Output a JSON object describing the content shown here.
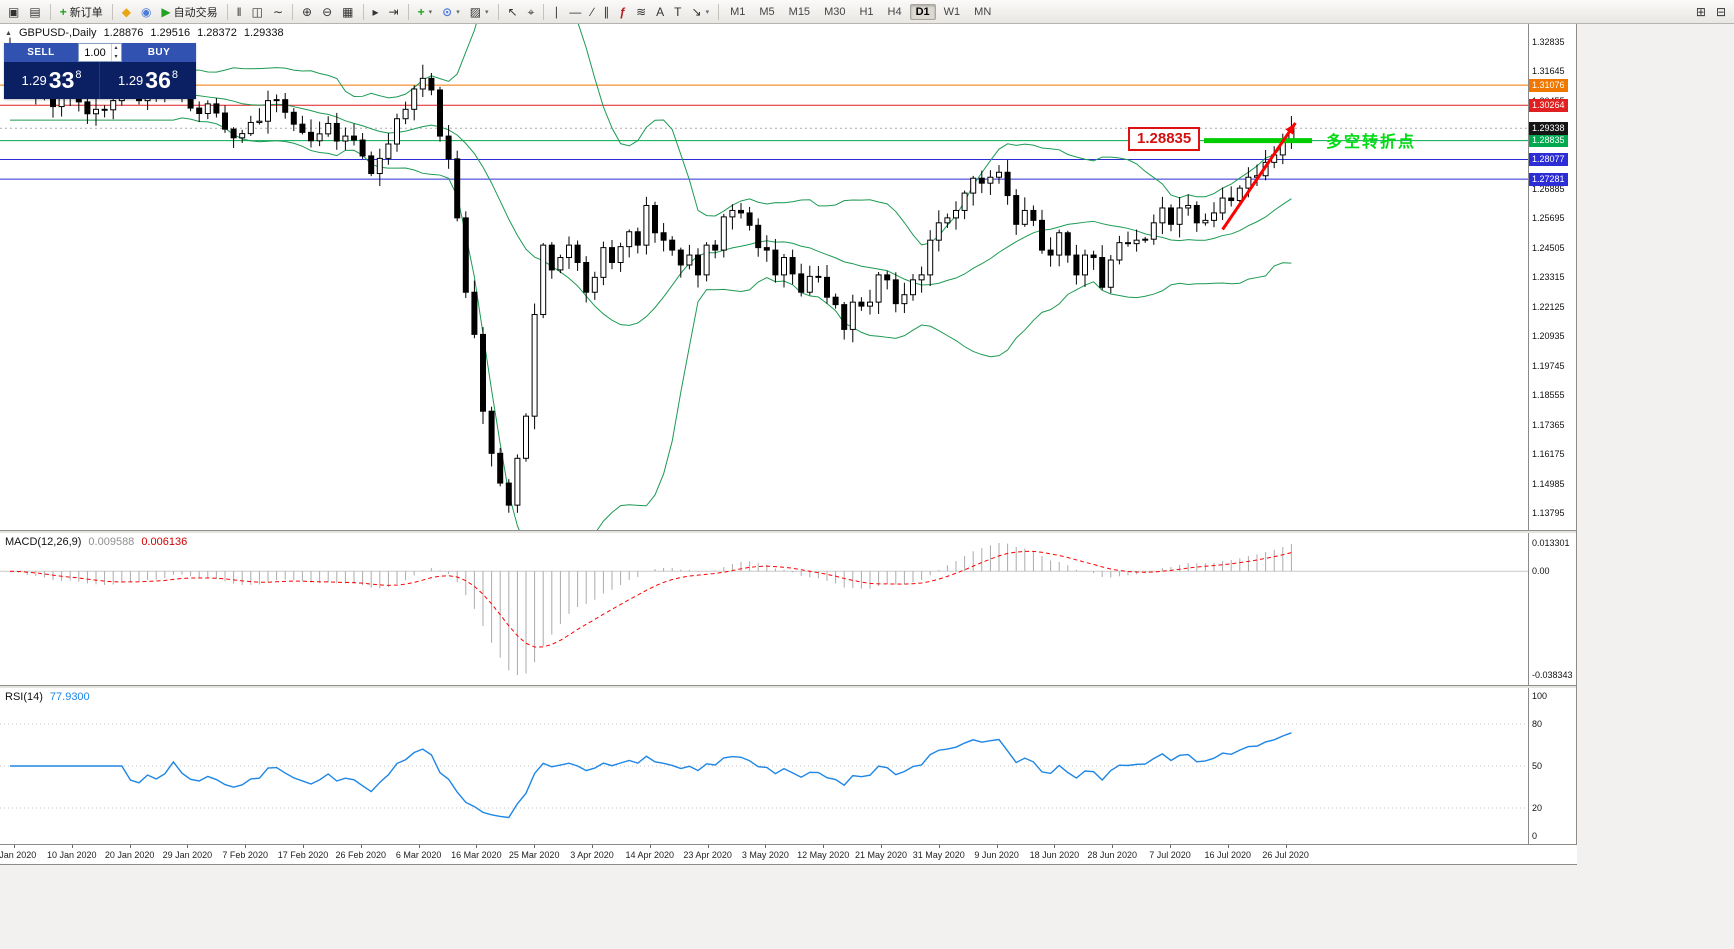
{
  "ui_icons": {
    "collapse": "▲",
    "caret": "▾",
    "spin_up": "▴",
    "spin_dn": "▾"
  },
  "toolbar": {
    "items": [
      {
        "name": "new-window-icon",
        "glyph": "▣"
      },
      {
        "name": "profiles-icon",
        "glyph": "▤"
      },
      {
        "type": "sep"
      },
      {
        "name": "new-order-button",
        "glyph": "+",
        "glyph_color": "#1FA51F",
        "label": "新订单"
      },
      {
        "type": "sep"
      },
      {
        "name": "mql5-community-icon",
        "glyph": "◆",
        "glyph_color": "#E8A617"
      },
      {
        "name": "market-news-icon",
        "glyph": "◉",
        "glyph_color": "#4F7BD9"
      },
      {
        "name": "autotrading-button",
        "glyph": "▶",
        "glyph_color": "#21A321",
        "label": "自动交易"
      },
      {
        "type": "sep"
      },
      {
        "name": "bar-chart-icon",
        "glyph": "‖"
      },
      {
        "name": "candlestick-chart-icon",
        "glyph": "◫"
      },
      {
        "name": "line-chart-icon",
        "glyph": "∼"
      },
      {
        "type": "sep"
      },
      {
        "name": "zoom-in-icon",
        "glyph": "⊕"
      },
      {
        "name": "zoom-out-icon",
        "glyph": "⊖"
      },
      {
        "name": "tile-windows-icon",
        "glyph": "▦"
      },
      {
        "type": "sep"
      },
      {
        "name": "auto-scroll-icon",
        "glyph": "▸"
      },
      {
        "name": "chart-shift-icon",
        "glyph": "⇥"
      },
      {
        "type": "sep"
      },
      {
        "name": "indicators-icon",
        "glyph": "+",
        "glyph_color": "#1FA51F",
        "caret": true
      },
      {
        "name": "periods-icon",
        "glyph": "⊙",
        "glyph_color": "#4F7BD9",
        "caret": true
      },
      {
        "name": "templates-icon",
        "glyph": "▨",
        "caret": true
      },
      {
        "type": "sep"
      },
      {
        "name": "cursor-icon",
        "glyph": "↖"
      },
      {
        "name": "crosshair-icon",
        "glyph": "⌖"
      },
      {
        "type": "sep"
      },
      {
        "name": "vertical-line-icon",
        "glyph": "∣"
      },
      {
        "name": "horizontal-line-icon",
        "glyph": "―"
      },
      {
        "name": "trendline-icon",
        "glyph": "∕"
      },
      {
        "name": "equidistant-channel-icon",
        "glyph": "∥"
      },
      {
        "name": "fibonacci-icon",
        "glyph": "ƒ",
        "glyph_color": "#B22222"
      },
      {
        "name": "shapes-icon",
        "glyph": "≋"
      },
      {
        "name": "text-icon",
        "glyph": "A"
      },
      {
        "name": "text-label-icon",
        "glyph": "T"
      },
      {
        "name": "arrows-icon",
        "glyph": "↘",
        "caret": true
      },
      {
        "type": "sep"
      },
      {
        "type": "timeframes"
      },
      {
        "type": "spacer"
      },
      {
        "name": "print-icon",
        "glyph": "⊞"
      },
      {
        "name": "window-arrange-icon",
        "glyph": "⊟"
      }
    ],
    "timeframes": {
      "options": [
        "M1",
        "M5",
        "M15",
        "M30",
        "H1",
        "H4",
        "D1",
        "W1",
        "MN"
      ],
      "active": "D1"
    }
  },
  "chart": {
    "title": "GBPUSD-,Daily",
    "ohlc": {
      "open": "1.28876",
      "high": "1.29516",
      "low": "1.28372",
      "close": "1.29338"
    },
    "one_click": {
      "sell_label": "SELL",
      "buy_label": "BUY",
      "volume": "1.00",
      "sell_price": {
        "head": "1.29",
        "big": "33",
        "sup": "8"
      },
      "buy_price": {
        "head": "1.29",
        "big": "36",
        "sup": "8"
      }
    },
    "annotations": {
      "price_label": "1.28835",
      "note": "多空转折点"
    },
    "levels": [
      {
        "price": 1.31076,
        "label": "1.31076",
        "color": "#F07800"
      },
      {
        "price": 1.30264,
        "label": "1.30264",
        "color": "#E02020"
      },
      {
        "price": 1.28835,
        "label": "1.28835",
        "color": "#00A94F"
      },
      {
        "price": 1.28077,
        "label": "1.28077",
        "color": "#2D2DD6"
      },
      {
        "price": 1.27281,
        "label": "1.27281",
        "color": "#2D2DD6"
      }
    ],
    "bid": {
      "price": 1.29338,
      "label": "1.29338",
      "badge": "#151515"
    },
    "y_axis": {
      "max": 1.333,
      "min": 1.1345,
      "ticks": [
        "1.32835",
        "1.31645",
        "1.30455",
        "1.29265",
        "1.28075",
        "1.26885",
        "1.25695",
        "1.24505",
        "1.23315",
        "1.22125",
        "1.20935",
        "1.19745",
        "1.18555",
        "1.17365",
        "1.16175",
        "1.14985",
        "1.13795"
      ]
    }
  },
  "macd": {
    "name": "MACD(12,26,9)",
    "main_value": "0.009588",
    "signal_value": "0.006136",
    "axis": {
      "max": "0.013301",
      "zero": "0.00",
      "min": "-0.038343"
    }
  },
  "rsi": {
    "name": "RSI(14)",
    "value": "77.9300",
    "axis": [
      "100",
      "80",
      "50",
      "20",
      "0"
    ],
    "levels": [
      80,
      50,
      20
    ]
  },
  "time_axis": {
    "labels": [
      "1 Jan 2020",
      "10 Jan 2020",
      "20 Jan 2020",
      "29 Jan 2020",
      "7 Feb 2020",
      "17 Feb 2020",
      "26 Feb 2020",
      "6 Mar 2020",
      "16 Mar 2020",
      "25 Mar 2020",
      "3 Apr 2020",
      "14 Apr 2020",
      "23 Apr 2020",
      "3 May 2020",
      "12 May 2020",
      "21 May 2020",
      "31 May 2020",
      "9 Jun 2020",
      "18 Jun 2020",
      "28 Jun 2020",
      "7 Jul 2020",
      "16 Jul 2020",
      "26 Jul 2020"
    ]
  },
  "chart_data": {
    "type": "candlestick",
    "symbol": "GBPUSD",
    "timeframe": "Daily",
    "title": "GBPUSD-,Daily",
    "x_labels": [
      "1 Jan 2020",
      "10 Jan 2020",
      "20 Jan 2020",
      "29 Jan 2020",
      "7 Feb 2020",
      "17 Feb 2020",
      "26 Feb 2020",
      "6 Mar 2020",
      "16 Mar 2020",
      "25 Mar 2020",
      "3 Apr 2020",
      "14 Apr 2020",
      "23 Apr 2020",
      "3 May 2020",
      "12 May 2020",
      "21 May 2020",
      "31 May 2020",
      "9 Jun 2020",
      "18 Jun 2020",
      "28 Jun 2020",
      "7 Jul 2020",
      "16 Jul 2020",
      "26 Jul 2020"
    ],
    "ylim": [
      1.1345,
      1.333
    ],
    "closes": [
      1.3204,
      1.314,
      1.308,
      1.3126,
      1.3078,
      1.3021,
      1.3065,
      1.3118,
      1.304,
      1.2992,
      1.301,
      1.3008,
      1.3045,
      1.3103,
      1.3076,
      1.3045,
      1.3102,
      1.3061,
      1.31,
      1.3205,
      1.309,
      1.3015,
      1.2993,
      1.3032,
      1.2995,
      1.293,
      1.2895,
      1.2912,
      1.2957,
      1.2962,
      1.3045,
      1.3049,
      1.2998,
      1.295,
      1.2917,
      1.2883,
      1.2911,
      1.2953,
      1.2882,
      1.2902,
      1.2886,
      1.2822,
      1.2751,
      1.2812,
      1.287,
      1.2972,
      1.301,
      1.3092,
      1.3135,
      1.3088,
      1.2902,
      1.281,
      1.2572,
      1.2272,
      1.2102,
      1.1792,
      1.1622,
      1.1502,
      1.1413,
      1.1602,
      1.1772,
      1.2182,
      1.2462,
      1.2362,
      1.2412,
      1.2462,
      1.2392,
      1.2272,
      1.2332,
      1.2452,
      1.2392,
      1.2456,
      1.2516,
      1.2462,
      1.2622,
      1.2512,
      1.2482,
      1.2442,
      1.2382,
      1.2422,
      1.2342,
      1.2462,
      1.2442,
      1.2576,
      1.2602,
      1.2592,
      1.2542,
      1.2452,
      1.2442,
      1.2342,
      1.2412,
      1.2346,
      1.2272,
      1.2336,
      1.2332,
      1.2252,
      1.2222,
      1.2122,
      1.2232,
      1.2216,
      1.2232,
      1.2342,
      1.2322,
      1.2226,
      1.2262,
      1.2322,
      1.2342,
      1.2482,
      1.2552,
      1.2572,
      1.2602,
      1.2672,
      1.2732,
      1.2712,
      1.2736,
      1.2756,
      1.2662,
      1.2546,
      1.2602,
      1.2562,
      1.2442,
      1.2422,
      1.2512,
      1.2422,
      1.2342,
      1.2422,
      1.2412,
      1.2292,
      1.2402,
      1.2472,
      1.2468,
      1.2482,
      1.2486,
      1.2552,
      1.2612,
      1.2546,
      1.2612,
      1.2622,
      1.2552,
      1.2562,
      1.2592,
      1.2652,
      1.2642,
      1.2692,
      1.2736,
      1.2742,
      1.2796,
      1.2826,
      1.2882,
      1.2934
    ],
    "indicators": {
      "bollinger": {
        "period": 20,
        "deviation": 2
      },
      "macd": {
        "fast": 12,
        "slow": 26,
        "signal": 9
      },
      "rsi": {
        "period": 14
      }
    }
  }
}
